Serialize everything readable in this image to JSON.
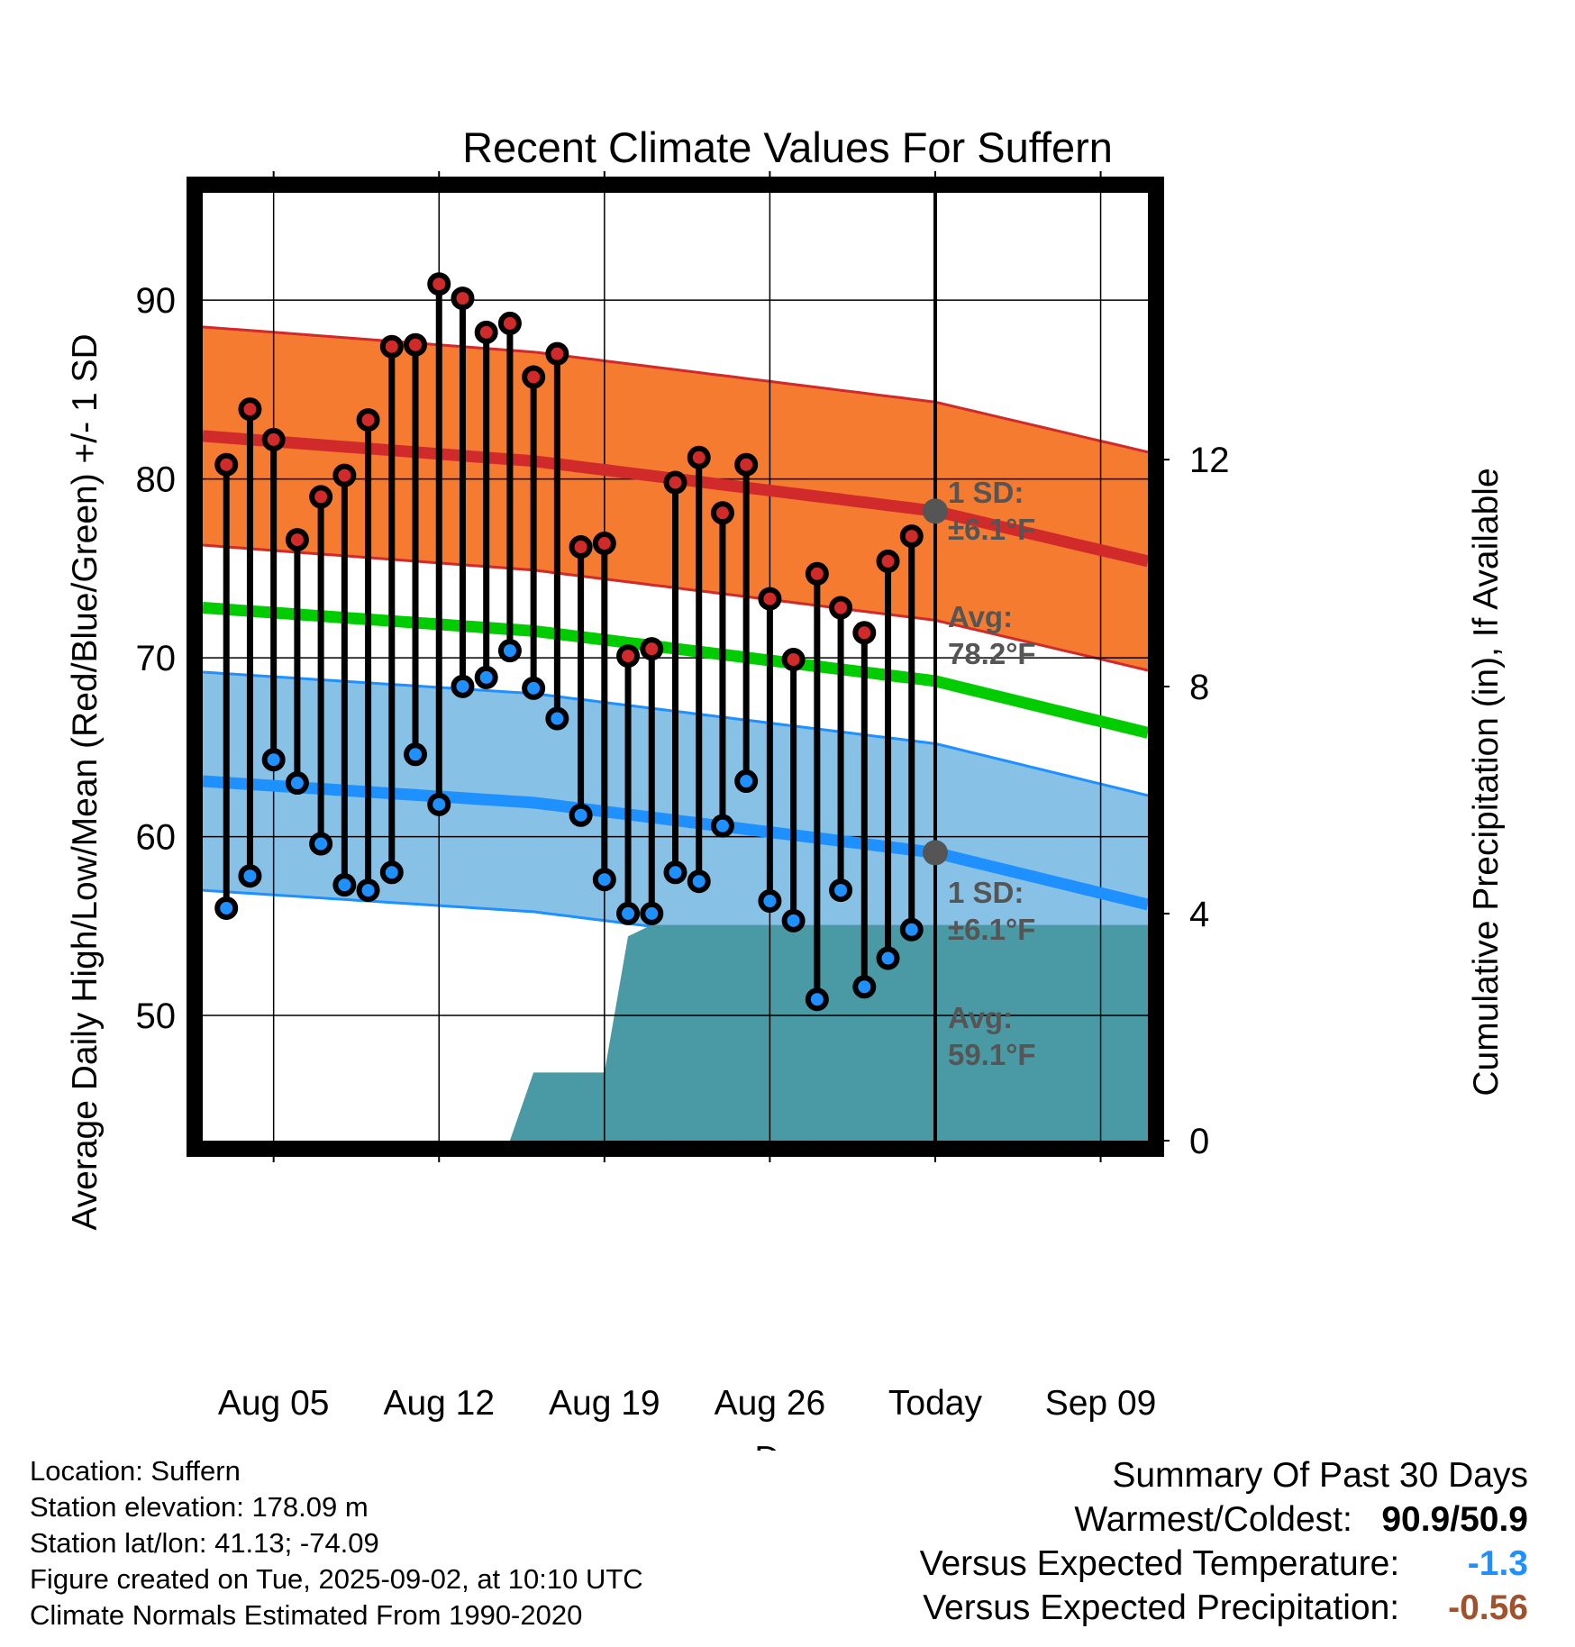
{
  "chart_data": {
    "type": "line",
    "title": "Recent Climate Values For Suffern",
    "xlabel": "Day",
    "ylabel": "Average Daily High/Low/Mean (Red/Blue/Green) +/- 1 SD",
    "y2label": "Cumulative Precipitation (in), If Available",
    "ylim": [
      43,
      96
    ],
    "y_ticks": [
      50,
      60,
      70,
      80,
      90
    ],
    "y2lim": [
      0,
      16.7
    ],
    "y2_ticks": [
      0,
      4,
      8,
      12
    ],
    "x_ticks": [
      "Aug 05",
      "Aug 12",
      "Aug 19",
      "Aug 26",
      "Today",
      "Sep 09"
    ],
    "x_tick_dates": [
      "2025-08-05",
      "2025-08-12",
      "2025-08-19",
      "2025-08-26",
      "2025-09-02",
      "2025-09-09"
    ],
    "xlim": [
      "2025-08-02",
      "2025-09-11"
    ],
    "grid": true,
    "today": "2025-09-02",
    "colors": {
      "high": "#d02a2a",
      "high_band": "#f47b30",
      "low": "#1e90ff",
      "low_band": "#87c1e6",
      "mean": "#00cc00",
      "precip": "#4a9aa5",
      "avg_marker": "#555555",
      "annotation": "#555555"
    },
    "daily": {
      "dates": [
        "2025-08-03",
        "2025-08-04",
        "2025-08-05",
        "2025-08-06",
        "2025-08-07",
        "2025-08-08",
        "2025-08-09",
        "2025-08-10",
        "2025-08-11",
        "2025-08-12",
        "2025-08-13",
        "2025-08-14",
        "2025-08-15",
        "2025-08-16",
        "2025-08-17",
        "2025-08-18",
        "2025-08-19",
        "2025-08-20",
        "2025-08-21",
        "2025-08-22",
        "2025-08-23",
        "2025-08-24",
        "2025-08-25",
        "2025-08-26",
        "2025-08-27",
        "2025-08-28",
        "2025-08-29",
        "2025-08-30",
        "2025-08-31",
        "2025-09-01"
      ],
      "highs": [
        80.8,
        83.9,
        82.2,
        76.6,
        79.0,
        80.2,
        83.3,
        87.4,
        87.5,
        90.9,
        90.1,
        88.2,
        88.7,
        85.7,
        87.0,
        76.2,
        76.4,
        70.1,
        70.5,
        79.8,
        81.2,
        78.1,
        80.8,
        73.3,
        69.9,
        74.7,
        72.8,
        71.4,
        75.4,
        76.8
      ],
      "lows": [
        56.0,
        57.8,
        64.3,
        63.0,
        59.6,
        57.3,
        57.0,
        58.0,
        64.6,
        61.8,
        68.4,
        68.9,
        70.4,
        68.3,
        66.6,
        61.2,
        57.6,
        55.7,
        55.7,
        58.0,
        57.5,
        60.6,
        63.1,
        56.4,
        55.3,
        50.9,
        57.0,
        51.6,
        53.2,
        54.8
      ]
    },
    "normals": {
      "dates": [
        "2025-08-02",
        "2025-08-16",
        "2025-09-02",
        "2025-09-11"
      ],
      "high_avg": [
        82.4,
        81.0,
        78.2,
        75.4
      ],
      "low_avg": [
        63.1,
        61.9,
        59.1,
        56.2
      ],
      "mean_avg": [
        72.8,
        71.5,
        68.7,
        65.8
      ],
      "sd": 6.1
    },
    "precip": {
      "dates": [
        "2025-08-02",
        "2025-08-15",
        "2025-08-16",
        "2025-08-19",
        "2025-08-20",
        "2025-08-21",
        "2025-09-11"
      ],
      "cumulative": [
        0,
        0,
        1.2,
        1.2,
        3.6,
        3.8,
        3.8
      ]
    },
    "annotations": {
      "high_sd": [
        "1 SD:",
        "±6.1°F"
      ],
      "high_avg": [
        "Avg:",
        "78.2°F"
      ],
      "low_sd": [
        "1 SD:",
        "±6.1°F"
      ],
      "low_avg": [
        "Avg:",
        "59.1°F"
      ],
      "window": [
        "30",
        "Days"
      ]
    }
  },
  "footer_left": [
    "Location: Suffern",
    "Station elevation: 178.09 m",
    "Station lat/lon: 41.13; -74.09",
    "Figure created on Tue, 2025-09-02, at 10:10 UTC",
    "Climate Normals Estimated From 1990-2020"
  ],
  "summary": {
    "title": "Summary Of Past 30 Days",
    "warm_cold_label": "Warmest/Coldest:",
    "warm_cold_value": "90.9/50.9",
    "temp_label": "Versus Expected Temperature:",
    "temp_value": "-1.3",
    "temp_color": "#1e90ff",
    "precip_label": "Versus Expected Precipitation:",
    "precip_value": "-0.56",
    "precip_color": "#a0522d"
  }
}
